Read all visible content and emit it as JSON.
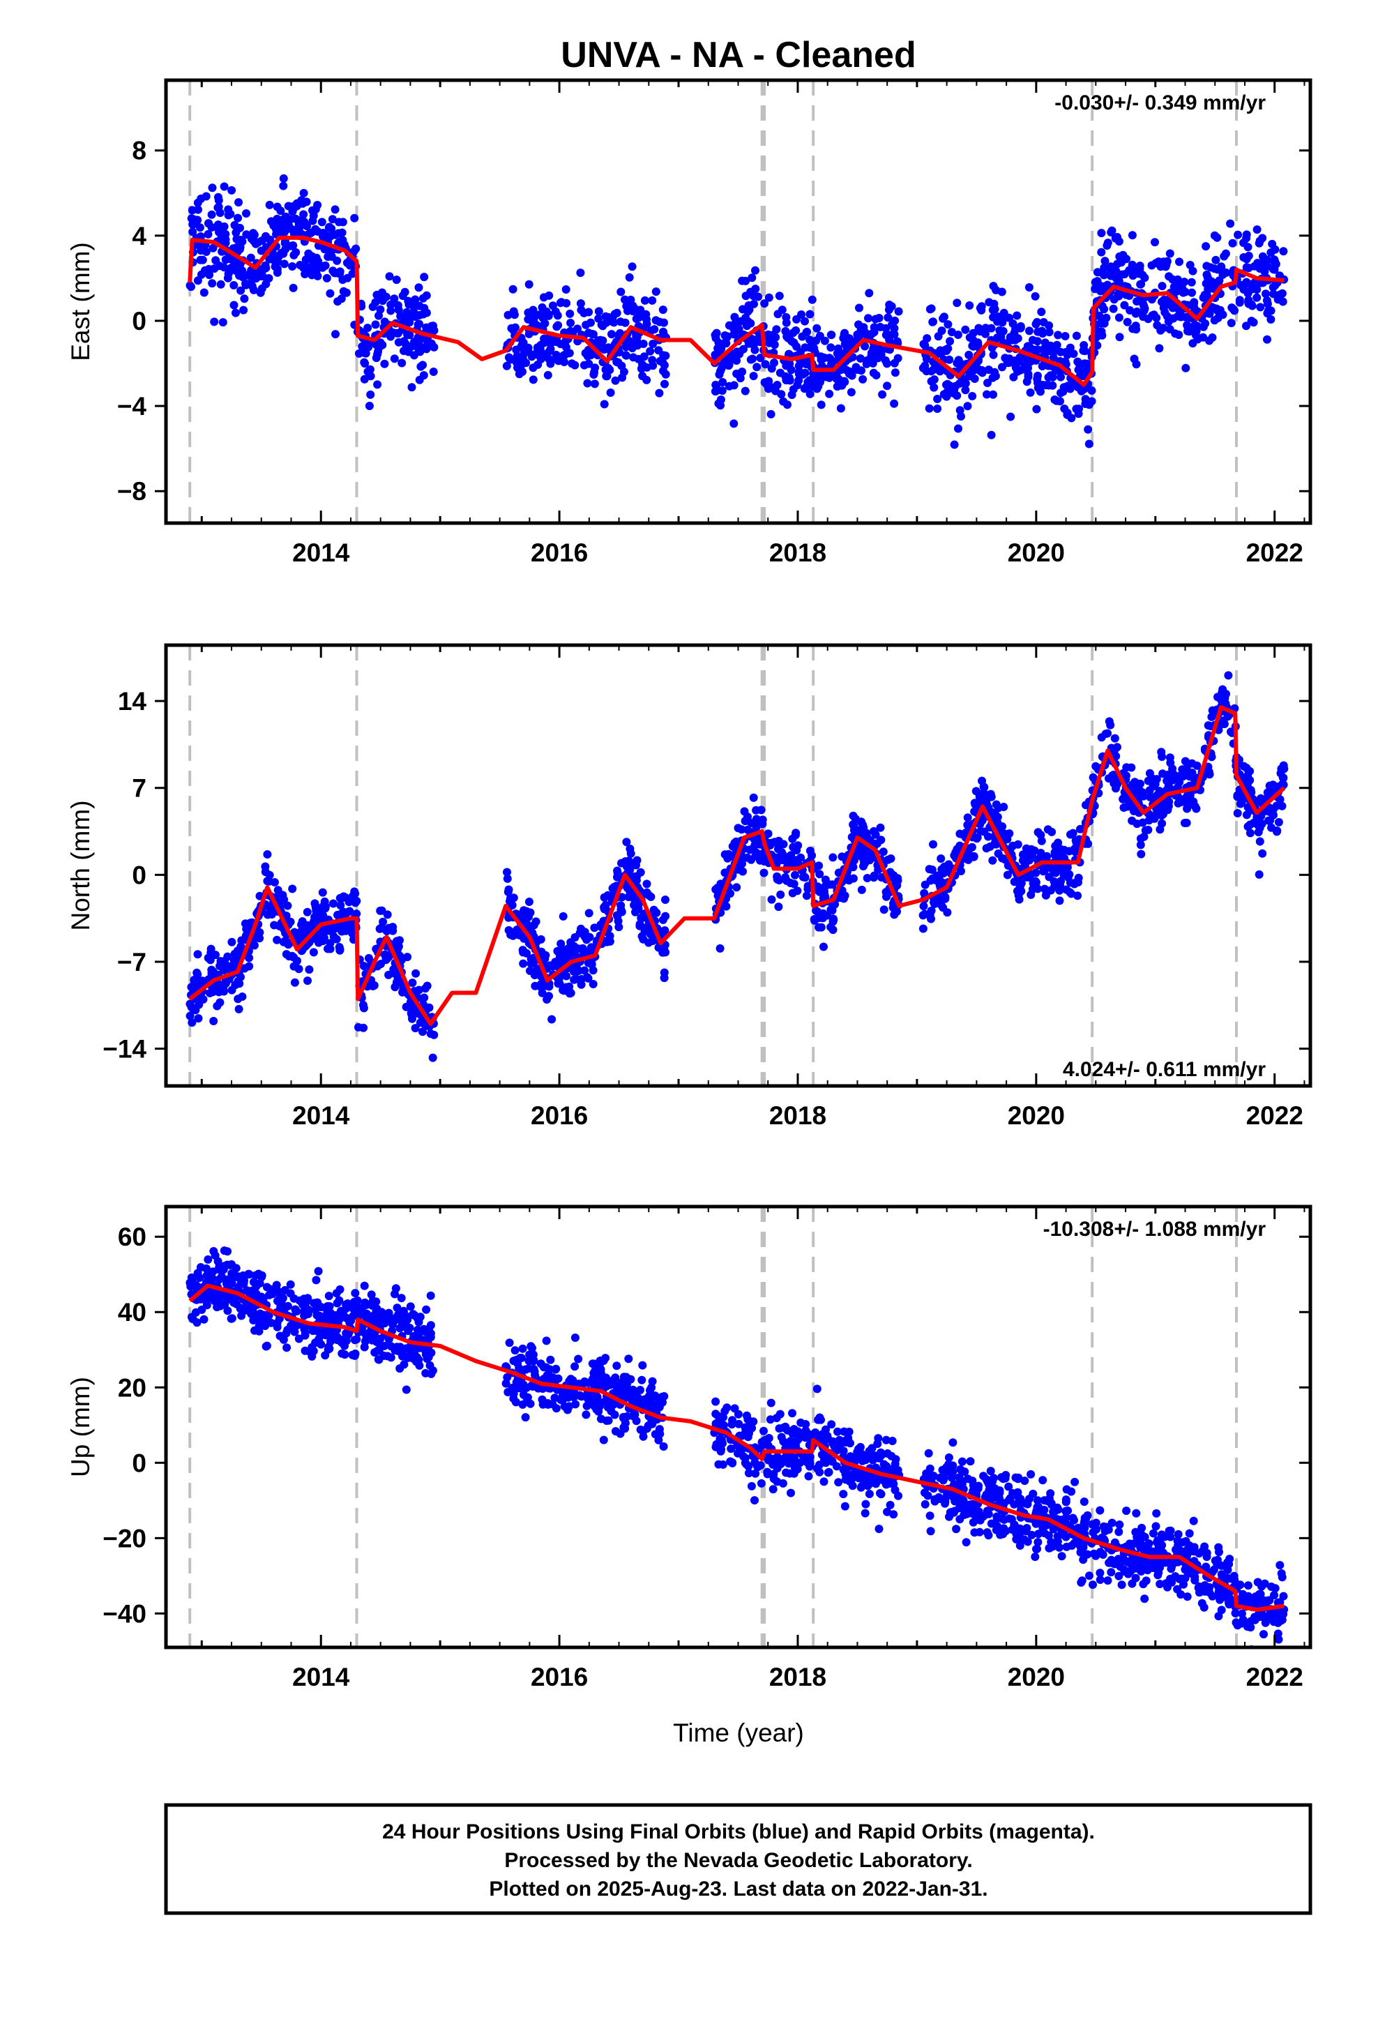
{
  "title": "UNVA  - NA - Cleaned",
  "xlabel": "Time (year)",
  "caption": {
    "line1": "24 Hour Positions Using Final Orbits (blue) and Rapid Orbits (magenta).",
    "line2": "Processed by the Nevada Geodetic Laboratory.",
    "line3": "Plotted on 2025-Aug-23. Last data on 2022-Jan-31."
  },
  "colors": {
    "points": "#0000ff",
    "model": "#ff0000",
    "breaks": "#c0c0c0",
    "frame": "#000000"
  },
  "chart_data": [
    {
      "type": "scatter",
      "ylabel": "East (mm)",
      "rate_label": "-0.030+/- 0.349 mm/yr",
      "xlim": [
        2012.7,
        2022.3
      ],
      "ylim": [
        -9.5,
        11.3
      ],
      "xticks": [
        2014,
        2016,
        2018,
        2020,
        2022
      ],
      "yticks": [
        -8,
        -4,
        0,
        4,
        8
      ],
      "breaks": [
        2012.9,
        2014.3,
        2017.7,
        2017.72,
        2018.13,
        2020.47,
        2021.68
      ],
      "data_segments": [
        [
          2012.9,
          2014.95
        ],
        [
          2015.55,
          2016.9
        ],
        [
          2017.3,
          2018.85
        ],
        [
          2019.05,
          2022.08
        ]
      ],
      "model": [
        [
          2012.9,
          1.8
        ],
        [
          2012.92,
          3.8
        ],
        [
          2013.1,
          3.7
        ],
        [
          2013.25,
          3.2
        ],
        [
          2013.45,
          2.5
        ],
        [
          2013.65,
          3.9
        ],
        [
          2013.85,
          3.9
        ],
        [
          2014.0,
          3.7
        ],
        [
          2014.2,
          3.3
        ],
        [
          2014.3,
          2.8
        ],
        [
          2014.31,
          -0.7
        ],
        [
          2014.45,
          -0.9
        ],
        [
          2014.6,
          -0.1
        ],
        [
          2014.85,
          -0.6
        ],
        [
          2015.15,
          -1.0
        ],
        [
          2015.35,
          -1.8
        ],
        [
          2015.55,
          -1.4
        ],
        [
          2015.7,
          -0.3
        ],
        [
          2016.0,
          -0.7
        ],
        [
          2016.2,
          -0.8
        ],
        [
          2016.4,
          -1.9
        ],
        [
          2016.6,
          -0.3
        ],
        [
          2016.85,
          -0.9
        ],
        [
          2017.1,
          -0.9
        ],
        [
          2017.3,
          -2.0
        ],
        [
          2017.5,
          -1.0
        ],
        [
          2017.7,
          -0.2
        ],
        [
          2017.72,
          -1.6
        ],
        [
          2017.95,
          -1.8
        ],
        [
          2018.12,
          -1.6
        ],
        [
          2018.13,
          -2.3
        ],
        [
          2018.3,
          -2.3
        ],
        [
          2018.55,
          -0.9
        ],
        [
          2018.8,
          -1.2
        ],
        [
          2019.1,
          -1.5
        ],
        [
          2019.35,
          -2.6
        ],
        [
          2019.6,
          -1.0
        ],
        [
          2019.85,
          -1.4
        ],
        [
          2020.2,
          -2.1
        ],
        [
          2020.4,
          -3.0
        ],
        [
          2020.47,
          -2.4
        ],
        [
          2020.48,
          0.6
        ],
        [
          2020.65,
          1.6
        ],
        [
          2020.9,
          1.2
        ],
        [
          2021.1,
          1.3
        ],
        [
          2021.35,
          0.1
        ],
        [
          2021.55,
          1.6
        ],
        [
          2021.67,
          1.8
        ],
        [
          2021.68,
          2.4
        ],
        [
          2021.85,
          2.0
        ],
        [
          2022.08,
          1.9
        ]
      ],
      "scatter_sd": 1.1,
      "n_points": 1800
    },
    {
      "type": "scatter",
      "ylabel": "North (mm)",
      "rate_label": "4.024+/- 0.611 mm/yr",
      "xlim": [
        2012.7,
        2022.3
      ],
      "ylim": [
        -17,
        18.5
      ],
      "xticks": [
        2014,
        2016,
        2018,
        2020,
        2022
      ],
      "yticks": [
        -14,
        -7,
        0,
        7,
        14
      ],
      "breaks": [
        2012.9,
        2014.3,
        2017.7,
        2017.72,
        2018.13,
        2020.47,
        2021.68
      ],
      "data_segments": [
        [
          2012.9,
          2014.95
        ],
        [
          2015.55,
          2016.9
        ],
        [
          2017.3,
          2018.85
        ],
        [
          2019.05,
          2022.08
        ]
      ],
      "model": [
        [
          2012.9,
          -10.0
        ],
        [
          2013.1,
          -8.5
        ],
        [
          2013.3,
          -7.8
        ],
        [
          2013.45,
          -4.0
        ],
        [
          2013.55,
          -1.0
        ],
        [
          2013.8,
          -6.0
        ],
        [
          2014.0,
          -4.0
        ],
        [
          2014.25,
          -3.5
        ],
        [
          2014.3,
          -3.5
        ],
        [
          2014.31,
          -10.0
        ],
        [
          2014.45,
          -7.0
        ],
        [
          2014.55,
          -5.0
        ],
        [
          2014.75,
          -9.5
        ],
        [
          2014.92,
          -12.0
        ],
        [
          2015.1,
          -9.5
        ],
        [
          2015.3,
          -9.5
        ],
        [
          2015.55,
          -2.5
        ],
        [
          2015.75,
          -5.0
        ],
        [
          2015.9,
          -8.5
        ],
        [
          2016.1,
          -7.0
        ],
        [
          2016.3,
          -6.5
        ],
        [
          2016.55,
          0.0
        ],
        [
          2016.7,
          -2.0
        ],
        [
          2016.85,
          -5.5
        ],
        [
          2017.05,
          -3.5
        ],
        [
          2017.3,
          -3.5
        ],
        [
          2017.55,
          3.0
        ],
        [
          2017.7,
          3.5
        ],
        [
          2017.72,
          2.5
        ],
        [
          2017.8,
          0.5
        ],
        [
          2018.0,
          0.5
        ],
        [
          2018.12,
          1.0
        ],
        [
          2018.13,
          -2.5
        ],
        [
          2018.3,
          -2.0
        ],
        [
          2018.5,
          3.0
        ],
        [
          2018.65,
          2.0
        ],
        [
          2018.85,
          -2.5
        ],
        [
          2019.05,
          -2.0
        ],
        [
          2019.25,
          -1.0
        ],
        [
          2019.55,
          5.5
        ],
        [
          2019.85,
          0.0
        ],
        [
          2020.05,
          1.0
        ],
        [
          2020.35,
          1.0
        ],
        [
          2020.47,
          6.0
        ],
        [
          2020.6,
          10.0
        ],
        [
          2020.75,
          7.0
        ],
        [
          2020.9,
          5.0
        ],
        [
          2021.1,
          6.5
        ],
        [
          2021.35,
          7.0
        ],
        [
          2021.55,
          13.5
        ],
        [
          2021.67,
          13.0
        ],
        [
          2021.68,
          8.0
        ],
        [
          2021.85,
          5.0
        ],
        [
          2022.08,
          7.0
        ]
      ],
      "scatter_sd": 1.3,
      "n_points": 1800
    },
    {
      "type": "scatter",
      "ylabel": "Up (mm)",
      "rate_label": "-10.308+/- 1.088 mm/yr",
      "xlim": [
        2012.7,
        2022.3
      ],
      "ylim": [
        -49,
        68
      ],
      "xticks": [
        2014,
        2016,
        2018,
        2020,
        2022
      ],
      "yticks": [
        -40,
        -20,
        0,
        20,
        40,
        60
      ],
      "breaks": [
        2012.9,
        2014.3,
        2017.7,
        2017.72,
        2018.13,
        2020.47,
        2021.68
      ],
      "data_segments": [
        [
          2012.9,
          2014.95
        ],
        [
          2015.55,
          2016.9
        ],
        [
          2017.3,
          2018.85
        ],
        [
          2019.05,
          2022.08
        ]
      ],
      "model": [
        [
          2012.9,
          43
        ],
        [
          2013.05,
          47
        ],
        [
          2013.3,
          45
        ],
        [
          2013.6,
          40
        ],
        [
          2013.9,
          37
        ],
        [
          2014.2,
          36
        ],
        [
          2014.3,
          35
        ],
        [
          2014.31,
          38
        ],
        [
          2014.5,
          35
        ],
        [
          2014.75,
          32
        ],
        [
          2015.0,
          31
        ],
        [
          2015.3,
          27
        ],
        [
          2015.6,
          24
        ],
        [
          2015.85,
          21
        ],
        [
          2016.1,
          20
        ],
        [
          2016.35,
          19
        ],
        [
          2016.6,
          15
        ],
        [
          2016.85,
          12
        ],
        [
          2017.1,
          11
        ],
        [
          2017.4,
          8
        ],
        [
          2017.6,
          4
        ],
        [
          2017.7,
          1
        ],
        [
          2017.72,
          3
        ],
        [
          2017.9,
          3
        ],
        [
          2018.12,
          3
        ],
        [
          2018.13,
          6
        ],
        [
          2018.4,
          0
        ],
        [
          2018.7,
          -3
        ],
        [
          2019.0,
          -5
        ],
        [
          2019.3,
          -7
        ],
        [
          2019.6,
          -11
        ],
        [
          2019.9,
          -14
        ],
        [
          2020.1,
          -15
        ],
        [
          2020.4,
          -20
        ],
        [
          2020.7,
          -23
        ],
        [
          2020.95,
          -25
        ],
        [
          2021.2,
          -25
        ],
        [
          2021.45,
          -30
        ],
        [
          2021.67,
          -34
        ],
        [
          2021.68,
          -38
        ],
        [
          2021.85,
          -39
        ],
        [
          2022.08,
          -38
        ]
      ],
      "scatter_sd": 4.5,
      "n_points": 1800
    }
  ]
}
